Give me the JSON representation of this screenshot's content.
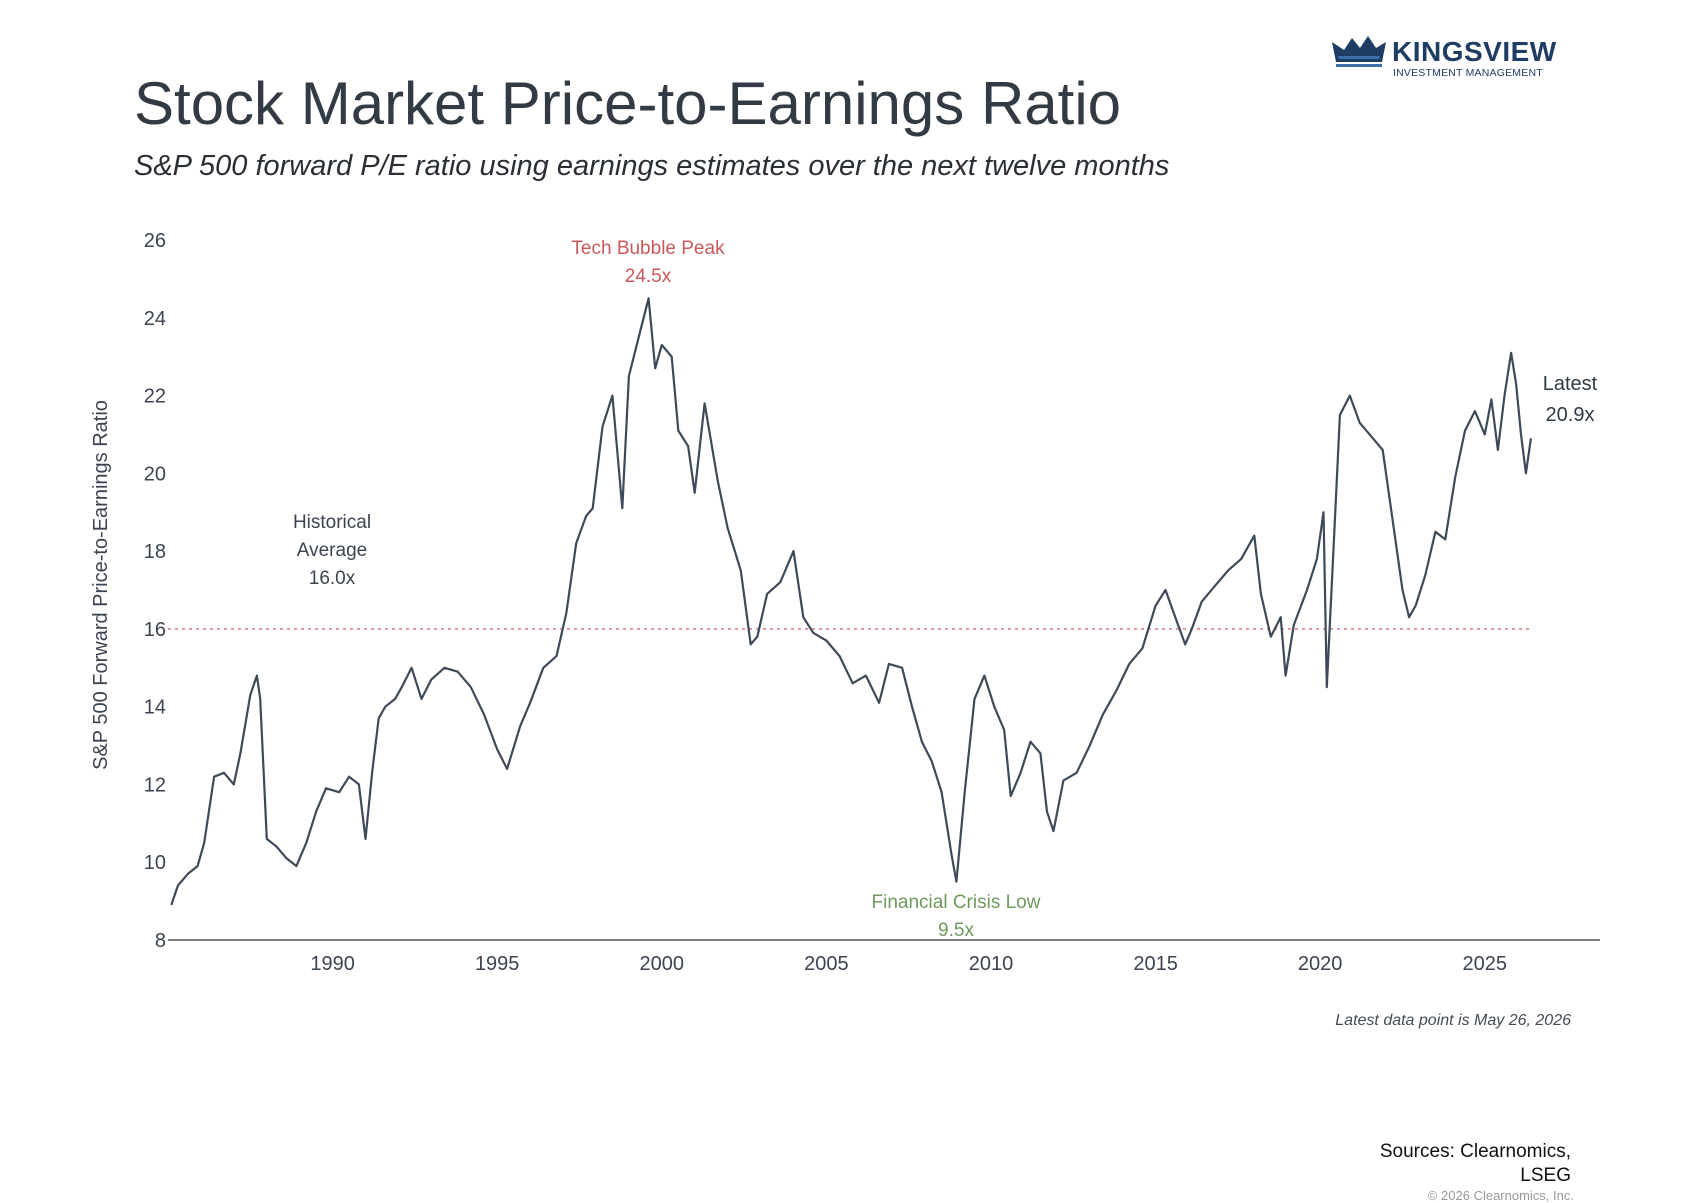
{
  "header": {
    "title": "Stock Market Price-to-Earnings Ratio",
    "subtitle": "S&P 500 forward P/E ratio using earnings estimates over the next twelve months"
  },
  "logo": {
    "name": "KINGSVIEW",
    "tagline": "INVESTMENT MANAGEMENT",
    "color": "#1f3c63"
  },
  "footer": {
    "note": "Latest data point is May 26, 2026",
    "sources_line1": "Sources: Clearnomics,",
    "sources_line2": "LSEG",
    "copyright": "© 2026 Clearnomics, Inc."
  },
  "chart_data": {
    "type": "line",
    "title": "",
    "ylabel": "S&P 500 Forward Price-to-Earnings Ratio",
    "xlabel": "",
    "xlim": [
      1985,
      2028.5
    ],
    "ylim": [
      8,
      26
    ],
    "yticks": [
      8,
      10,
      12,
      14,
      16,
      18,
      20,
      22,
      24,
      26
    ],
    "xticks": [
      1990,
      1995,
      2000,
      2005,
      2010,
      2015,
      2020,
      2025
    ],
    "grid": false,
    "line_color": "#3e4a59",
    "average_color": "#d9868a",
    "series": [
      {
        "x": [
          1985.1,
          1985.3,
          1985.6,
          1985.9,
          1986.1,
          1986.4,
          1986.7,
          1987.0,
          1987.2,
          1987.5,
          1987.7,
          1987.8,
          1988.0,
          1988.3,
          1988.6,
          1988.9,
          1989.2,
          1989.5,
          1989.8,
          1990.2,
          1990.5,
          1990.8,
          1991.0,
          1991.2,
          1991.4,
          1991.6,
          1991.9,
          1992.1,
          1992.4,
          1992.7,
          1993.0,
          1993.4,
          1993.8,
          1994.2,
          1994.6,
          1995.0,
          1995.3,
          1995.7,
          1996.0,
          1996.4,
          1996.8,
          1997.1,
          1997.4,
          1997.7,
          1997.9,
          1998.2,
          1998.5,
          1998.8,
          1999.0,
          1999.3,
          1999.6,
          1999.8,
          2000.0,
          2000.3,
          2000.5,
          2000.8,
          2001.0,
          2001.3,
          2001.7,
          2002.0,
          2002.4,
          2002.7,
          2002.9,
          2003.2,
          2003.6,
          2004.0,
          2004.3,
          2004.6,
          2005.0,
          2005.4,
          2005.8,
          2006.2,
          2006.6,
          2006.9,
          2007.3,
          2007.6,
          2007.9,
          2008.2,
          2008.5,
          2008.8,
          2008.95,
          2009.2,
          2009.5,
          2009.8,
          2010.1,
          2010.4,
          2010.6,
          2010.9,
          2011.2,
          2011.5,
          2011.7,
          2011.9,
          2012.2,
          2012.6,
          2013.0,
          2013.4,
          2013.8,
          2014.2,
          2014.6,
          2015.0,
          2015.3,
          2015.6,
          2015.9,
          2016.1,
          2016.4,
          2016.8,
          2017.2,
          2017.6,
          2018.0,
          2018.2,
          2018.5,
          2018.8,
          2018.95,
          2019.2,
          2019.6,
          2019.9,
          2020.1,
          2020.2,
          2020.4,
          2020.6,
          2020.9,
          2021.2,
          2021.6,
          2021.9,
          2022.2,
          2022.5,
          2022.7,
          2022.9,
          2023.2,
          2023.5,
          2023.8,
          2024.1,
          2024.4,
          2024.7,
          2025.0,
          2025.2,
          2025.4,
          2025.6,
          2025.8,
          2025.95,
          2026.1,
          2026.25,
          2026.4
        ],
        "y": [
          8.9,
          9.4,
          9.7,
          9.9,
          10.5,
          12.2,
          12.3,
          12.0,
          12.8,
          14.3,
          14.8,
          14.2,
          10.6,
          10.4,
          10.1,
          9.9,
          10.5,
          11.3,
          11.9,
          11.8,
          12.2,
          12.0,
          10.6,
          12.3,
          13.7,
          14.0,
          14.2,
          14.5,
          15.0,
          14.2,
          14.7,
          15.0,
          14.9,
          14.5,
          13.8,
          12.9,
          12.4,
          13.5,
          14.1,
          15.0,
          15.3,
          16.4,
          18.2,
          18.9,
          19.1,
          21.2,
          22.0,
          19.1,
          22.5,
          23.5,
          24.5,
          22.7,
          23.3,
          23.0,
          21.1,
          20.7,
          19.5,
          21.8,
          19.8,
          18.6,
          17.5,
          15.6,
          15.8,
          16.9,
          17.2,
          18.0,
          16.3,
          15.9,
          15.7,
          15.3,
          14.6,
          14.8,
          14.1,
          15.1,
          15.0,
          14.0,
          13.1,
          12.6,
          11.8,
          10.2,
          9.5,
          11.8,
          14.2,
          14.8,
          14.0,
          13.4,
          11.7,
          12.3,
          13.1,
          12.8,
          11.3,
          10.8,
          12.1,
          12.3,
          13.0,
          13.8,
          14.4,
          15.1,
          15.5,
          16.6,
          17.0,
          16.3,
          15.6,
          16.0,
          16.7,
          17.1,
          17.5,
          17.8,
          18.4,
          16.9,
          15.8,
          16.3,
          14.8,
          16.1,
          17.0,
          17.8,
          19.0,
          14.5,
          18.0,
          21.5,
          22.0,
          21.3,
          20.9,
          20.6,
          18.8,
          17.0,
          16.3,
          16.6,
          17.4,
          18.5,
          18.3,
          19.9,
          21.1,
          21.6,
          21.0,
          21.9,
          20.6,
          22.0,
          23.1,
          22.3,
          21.0,
          20.0,
          20.9
        ]
      }
    ],
    "average": {
      "value": 16.0,
      "label_line1": "Historical",
      "label_line2": "Average",
      "label_line3": "16.0x"
    },
    "annotations": {
      "peak": {
        "x": 1999.6,
        "y": 24.5,
        "line1": "Tech Bubble Peak",
        "line2": "24.5x",
        "color": "#c8595c"
      },
      "low": {
        "x": 2008.95,
        "y": 9.5,
        "line1": "Financial Crisis Low",
        "line2": "9.5x",
        "color": "#6f9a5e"
      },
      "latest": {
        "line1": "Latest",
        "line2": "20.9x",
        "color": "#2f3a47"
      }
    }
  }
}
